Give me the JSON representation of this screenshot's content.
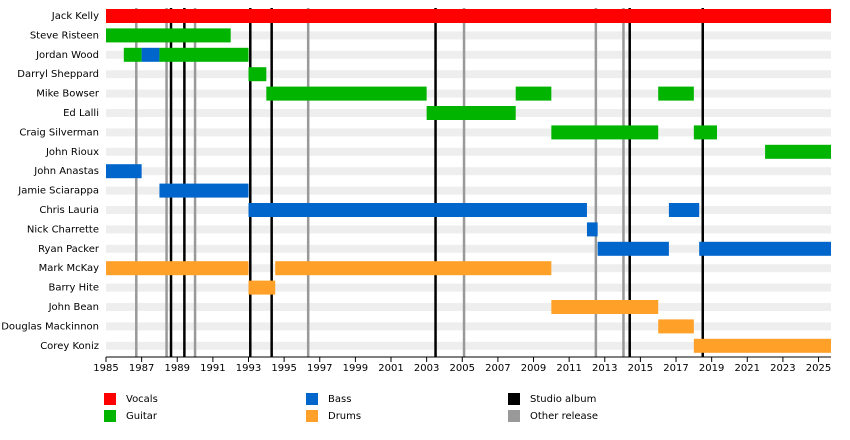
{
  "chart_data": {
    "type": "timeline",
    "xlim": [
      1985,
      2025.7
    ],
    "xticks": [
      1985,
      1987,
      1989,
      1991,
      1993,
      1995,
      1997,
      1999,
      2001,
      2003,
      2005,
      2007,
      2009,
      2011,
      2013,
      2015,
      2017,
      2019,
      2021,
      2023,
      2025
    ],
    "roles": [
      {
        "name": "Vocals",
        "color": "#ff0000"
      },
      {
        "name": "Guitar",
        "color": "#00b400"
      },
      {
        "name": "Bass",
        "color": "#0066cc"
      },
      {
        "name": "Drums",
        "color": "#ffa028"
      }
    ],
    "events": [
      {
        "name": "Studio album",
        "color": "#000000",
        "values": [
          1988.65,
          1989.4,
          1993.1,
          1994.3,
          2003.5,
          2014.4,
          2018.5
        ]
      },
      {
        "name": "Other release",
        "color": "#999999",
        "values": [
          1986.7,
          1988.4,
          1990.0,
          1996.35,
          2005.1,
          2012.5,
          2014.05
        ]
      }
    ],
    "members": [
      {
        "name": "Jack Kelly",
        "periods": [
          {
            "role": "Vocals",
            "start": 1985,
            "end": 2025.7
          }
        ]
      },
      {
        "name": "Steve Risteen",
        "periods": [
          {
            "role": "Guitar",
            "start": 1985,
            "end": 1992
          }
        ]
      },
      {
        "name": "Jordan Wood",
        "periods": [
          {
            "role": "Guitar",
            "start": 1986,
            "end": 1987
          },
          {
            "role": "Bass",
            "start": 1987,
            "end": 1988
          },
          {
            "role": "Guitar",
            "start": 1988,
            "end": 1993
          }
        ]
      },
      {
        "name": "Darryl Sheppard",
        "periods": [
          {
            "role": "Guitar",
            "start": 1993,
            "end": 1994
          }
        ]
      },
      {
        "name": "Mike Bowser",
        "periods": [
          {
            "role": "Guitar",
            "start": 1994,
            "end": 2003
          },
          {
            "role": "Guitar",
            "start": 2008,
            "end": 2010
          },
          {
            "role": "Guitar",
            "start": 2016,
            "end": 2018
          }
        ]
      },
      {
        "name": "Ed Lalli",
        "periods": [
          {
            "role": "Guitar",
            "start": 2003,
            "end": 2008
          }
        ]
      },
      {
        "name": "Craig Silverman",
        "periods": [
          {
            "role": "Guitar",
            "start": 2010,
            "end": 2016
          },
          {
            "role": "Guitar",
            "start": 2018,
            "end": 2019.3
          }
        ]
      },
      {
        "name": "John Rioux",
        "periods": [
          {
            "role": "Guitar",
            "start": 2022,
            "end": 2025.7
          }
        ]
      },
      {
        "name": "John Anastas",
        "periods": [
          {
            "role": "Bass",
            "start": 1985,
            "end": 1987
          }
        ]
      },
      {
        "name": "Jamie Sciarappa",
        "periods": [
          {
            "role": "Bass",
            "start": 1988,
            "end": 1993
          }
        ]
      },
      {
        "name": "Chris Lauria",
        "periods": [
          {
            "role": "Bass",
            "start": 1993,
            "end": 2012
          },
          {
            "role": "Bass",
            "start": 2016.6,
            "end": 2018.3
          }
        ]
      },
      {
        "name": "Nick Charrette",
        "periods": [
          {
            "role": "Bass",
            "start": 2012,
            "end": 2012.6
          }
        ]
      },
      {
        "name": "Ryan Packer",
        "periods": [
          {
            "role": "Bass",
            "start": 2012.6,
            "end": 2016.6
          },
          {
            "role": "Bass",
            "start": 2018.3,
            "end": 2025.7
          }
        ]
      },
      {
        "name": "Mark McKay",
        "periods": [
          {
            "role": "Drums",
            "start": 1985,
            "end": 1993
          },
          {
            "role": "Drums",
            "start": 1994.5,
            "end": 2010
          }
        ]
      },
      {
        "name": "Barry Hite",
        "periods": [
          {
            "role": "Drums",
            "start": 1993,
            "end": 1994.5
          }
        ]
      },
      {
        "name": "John Bean",
        "periods": [
          {
            "role": "Drums",
            "start": 2010,
            "end": 2016
          }
        ]
      },
      {
        "name": "Douglas Mackinnon",
        "periods": [
          {
            "role": "Drums",
            "start": 2016,
            "end": 2018
          }
        ]
      },
      {
        "name": "Corey Koniz",
        "periods": [
          {
            "role": "Drums",
            "start": 2018,
            "end": 2025.7
          }
        ]
      }
    ]
  }
}
